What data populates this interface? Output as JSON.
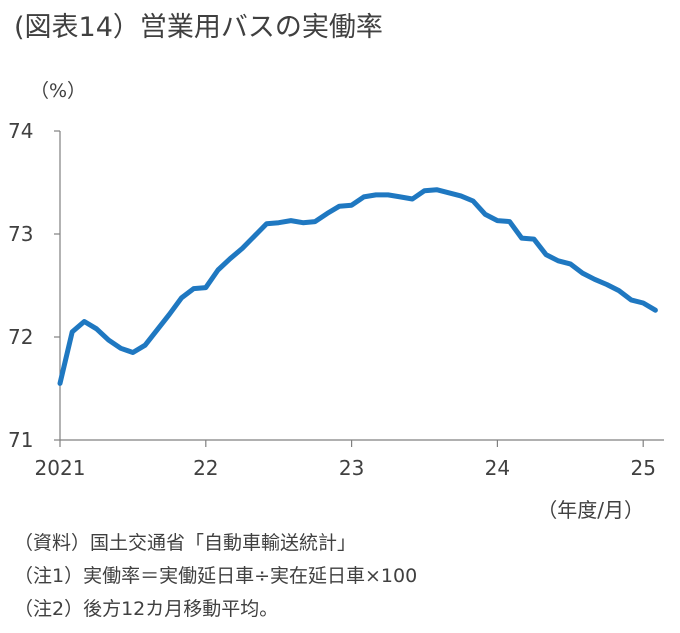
{
  "title": "(図表14）営業用バスの実働率",
  "unit_label": "（%）",
  "x_unit_label": "（年度/月）",
  "notes": [
    "（資料）国土交通省「自動車輸送統計」",
    "（注1）実働率＝実働延日車÷実在延日車×100",
    "（注2）後方12カ月移動平均。"
  ],
  "colors": {
    "line": "#1f78c1",
    "axis": "#808080"
  },
  "chart_data": {
    "type": "line",
    "title": "(図表14）営業用バスの実働率",
    "ylabel": "（%）",
    "xlabel": "（年度/月）",
    "ylim": [
      71,
      74
    ],
    "yticks": [
      71,
      72,
      73,
      74
    ],
    "xticks": [
      {
        "label": "2021",
        "at": 0
      },
      {
        "label": "22",
        "at": 12
      },
      {
        "label": "23",
        "at": 24
      },
      {
        "label": "24",
        "at": 36
      },
      {
        "label": "25",
        "at": 48
      }
    ],
    "grid": false,
    "series": [
      {
        "values": [
          71.55,
          72.05,
          72.15,
          72.08,
          71.97,
          71.89,
          71.85,
          71.92,
          72.07,
          72.22,
          72.38,
          72.47,
          72.48,
          72.65,
          72.76,
          72.86,
          72.98,
          73.1,
          73.11,
          73.13,
          73.11,
          73.12,
          73.2,
          73.27,
          73.28,
          73.36,
          73.38,
          73.38,
          73.36,
          73.34,
          73.42,
          73.43,
          73.4,
          73.37,
          73.32,
          73.19,
          73.13,
          73.12,
          72.96,
          72.95,
          72.8,
          72.74,
          72.71,
          72.62,
          72.56,
          72.51,
          72.45,
          72.36,
          72.33,
          72.26
        ]
      }
    ]
  }
}
